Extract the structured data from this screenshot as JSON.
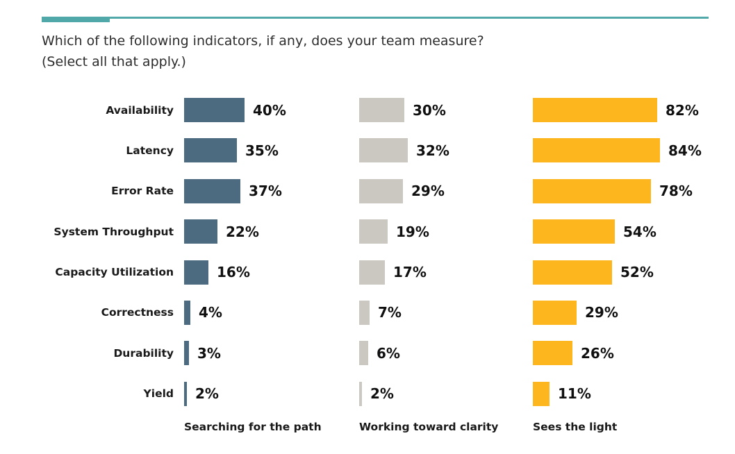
{
  "theme": {
    "accent": "#50a9a8",
    "background": "#ffffff",
    "title_color": "#2c2c2c",
    "label_color": "#191919"
  },
  "title": {
    "line1": "Which of the following indicators, if any, does your team measure?",
    "line2": "(Select all that apply.)"
  },
  "chart_data": {
    "type": "bar",
    "orientation": "horizontal",
    "title": "Which of the following indicators, if any, does your team measure? (Select all that apply.)",
    "categories": [
      "Availability",
      "Latency",
      "Error Rate",
      "System Throughput",
      "Capacity Utilization",
      "Correctness",
      "Durability",
      "Yield"
    ],
    "series": [
      {
        "name": "Searching for the path",
        "color": "#4c6b80",
        "values": [
          40,
          35,
          37,
          22,
          16,
          4,
          3,
          2
        ]
      },
      {
        "name": "Working toward clarity",
        "color": "#cbc8c1",
        "values": [
          30,
          32,
          29,
          19,
          17,
          7,
          6,
          2
        ]
      },
      {
        "name": "Sees the light",
        "color": "#fdb61d",
        "values": [
          82,
          84,
          78,
          54,
          52,
          29,
          26,
          11
        ]
      }
    ],
    "value_suffix": "%",
    "xlim": [
      0,
      100
    ],
    "grid": false,
    "legend_position": "bottom",
    "value_labels": "outside-end"
  }
}
